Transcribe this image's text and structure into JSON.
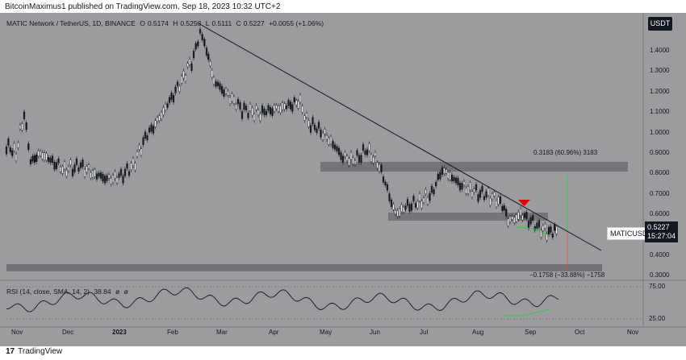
{
  "caption": "BitcoinMaximus1 published on TradingView.com, Sep 18, 2023 10:32 UTC+2",
  "symbol": {
    "title": "MATIC Network / TetherUS, 1D, BINANCE",
    "o_label": "O",
    "o": "0.5174",
    "h_label": "H",
    "h": "0.5253",
    "l_label": "L",
    "l": "0.5111",
    "c_label": "C",
    "c": "0.5227",
    "change": "+0.0055 (+1.06%)"
  },
  "scale_button": "USDT",
  "price_axis": [
    "1.4000",
    "1.3000",
    "1.2000",
    "1.1000",
    "1.0000",
    "0.9000",
    "0.8000",
    "0.7000",
    "0.6000",
    "0.4000",
    "0.3000"
  ],
  "time_axis": [
    "Nov",
    "Dec",
    "2023",
    "Feb",
    "Mar",
    "Apr",
    "May",
    "Jun",
    "Jul",
    "Aug",
    "Sep",
    "Oct",
    "Nov"
  ],
  "price_tag": "MATICUSDT",
  "last_price": "0.5227",
  "countdown": "15:27:04",
  "measure_up": "0.3183 (60.96%) 3183",
  "measure_down": "−0.1758 (−33.88%) −1758",
  "rsi": {
    "label": "RSI (14, close, SMA, 14, 2)",
    "value": "38.84",
    "flag1": "ø",
    "flag2": "ø",
    "levels": [
      "75.00",
      "25.00"
    ]
  },
  "logo_text": "TradingView",
  "colors": {
    "background": "#9c9c9f",
    "candles": "#131722",
    "zones": "#6f6f73",
    "arrow": "#e00000",
    "green": "#2ecc40"
  }
}
